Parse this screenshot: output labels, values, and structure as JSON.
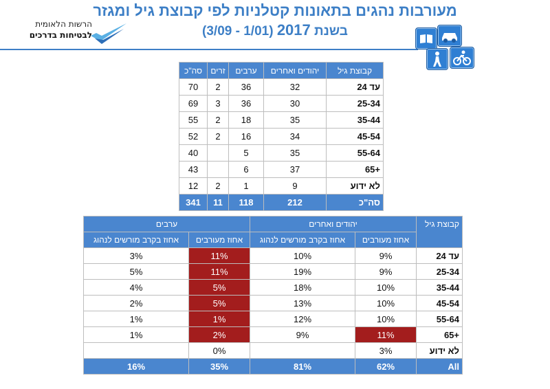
{
  "header": {
    "title": "מעורבות נהגים בתאונות קטלניות לפי קבוצת גיל ומגזר",
    "subtitle_prefix": "בשנת",
    "subtitle_year": "2017",
    "subtitle_range": "(1/01 - 3/09)"
  },
  "logo": {
    "line1": "הרשות הלאומית",
    "line2": "לבטיחות בדרכים"
  },
  "icons": [
    "book-icon",
    "car-icon",
    "pedestrian-icon",
    "bicycle-icon"
  ],
  "table1": {
    "headers": [
      "קבוצת גיל",
      "יהודים ואחרים",
      "ערבים",
      "זרים",
      "סה\"כ"
    ],
    "rows": [
      {
        "group": "עד 24",
        "jews": "32",
        "arabs": "36",
        "foreign": "2",
        "total": "70"
      },
      {
        "group": "25-34",
        "jews": "30",
        "arabs": "36",
        "foreign": "3",
        "total": "69"
      },
      {
        "group": "35-44",
        "jews": "35",
        "arabs": "18",
        "foreign": "2",
        "total": "55"
      },
      {
        "group": "45-54",
        "jews": "34",
        "arabs": "16",
        "foreign": "2",
        "total": "52"
      },
      {
        "group": "55-64",
        "jews": "35",
        "arabs": "5",
        "foreign": "",
        "total": "40"
      },
      {
        "group": "+65",
        "jews": "37",
        "arabs": "6",
        "foreign": "",
        "total": "43"
      },
      {
        "group": "לא ידוע",
        "jews": "9",
        "arabs": "1",
        "foreign": "2",
        "total": "12"
      }
    ],
    "total": {
      "group": "סה\"כ",
      "jews": "212",
      "arabs": "118",
      "foreign": "11",
      "total": "341"
    }
  },
  "table2": {
    "header_group": "קבוצת גיל",
    "header_jews": "יהודים ואחרים",
    "header_arabs": "ערבים",
    "sub_involved": "אחוז מעורבים",
    "sub_licensed": "אחוז בקרב מורשים לנהוג",
    "rows": [
      {
        "group": "עד 24",
        "j_inv": "9%",
        "j_lic": "10%",
        "a_inv": "11%",
        "a_lic": "3%"
      },
      {
        "group": "25-34",
        "j_inv": "9%",
        "j_lic": "19%",
        "a_inv": "11%",
        "a_lic": "5%"
      },
      {
        "group": "35-44",
        "j_inv": "10%",
        "j_lic": "18%",
        "a_inv": "5%",
        "a_lic": "4%"
      },
      {
        "group": "45-54",
        "j_inv": "10%",
        "j_lic": "13%",
        "a_inv": "5%",
        "a_lic": "2%"
      },
      {
        "group": "55-64",
        "j_inv": "10%",
        "j_lic": "12%",
        "a_inv": "1%",
        "a_lic": "1%"
      },
      {
        "group": "+65",
        "j_inv": "11%",
        "j_lic": "9%",
        "a_inv": "2%",
        "a_lic": "1%"
      },
      {
        "group": "לא ידוע",
        "j_inv": "3%",
        "j_lic": "",
        "a_inv": "0%",
        "a_lic": ""
      }
    ],
    "total": {
      "group": "All",
      "j_inv": "62%",
      "j_lic": "81%",
      "a_inv": "35%",
      "a_lic": "16%"
    },
    "highlight_color": "#a31d1d",
    "header_color": "#4a86cf"
  }
}
